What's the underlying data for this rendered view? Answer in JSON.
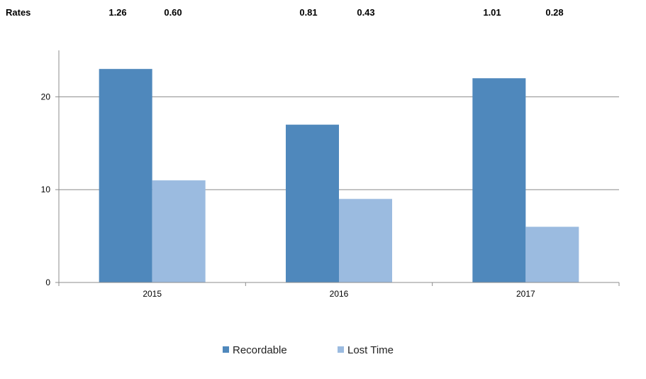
{
  "rates_row": {
    "label": "Rates",
    "values": [
      "1.26",
      "0.60",
      "0.81",
      "0.43",
      "1.01",
      "0.28"
    ]
  },
  "chart_data": {
    "type": "bar",
    "categories": [
      "2015",
      "2016",
      "2017"
    ],
    "series": [
      {
        "name": "Recordable",
        "values": [
          23,
          17,
          22
        ],
        "color": "#4f88bc"
      },
      {
        "name": "Lost Time",
        "values": [
          11,
          9,
          6
        ],
        "color": "#9bbbe0"
      }
    ],
    "ylim": [
      0,
      25
    ],
    "yticks": [
      0,
      10,
      20
    ],
    "grid": true,
    "legend_position": "bottom",
    "gridline_color": "#8c8c8c"
  }
}
